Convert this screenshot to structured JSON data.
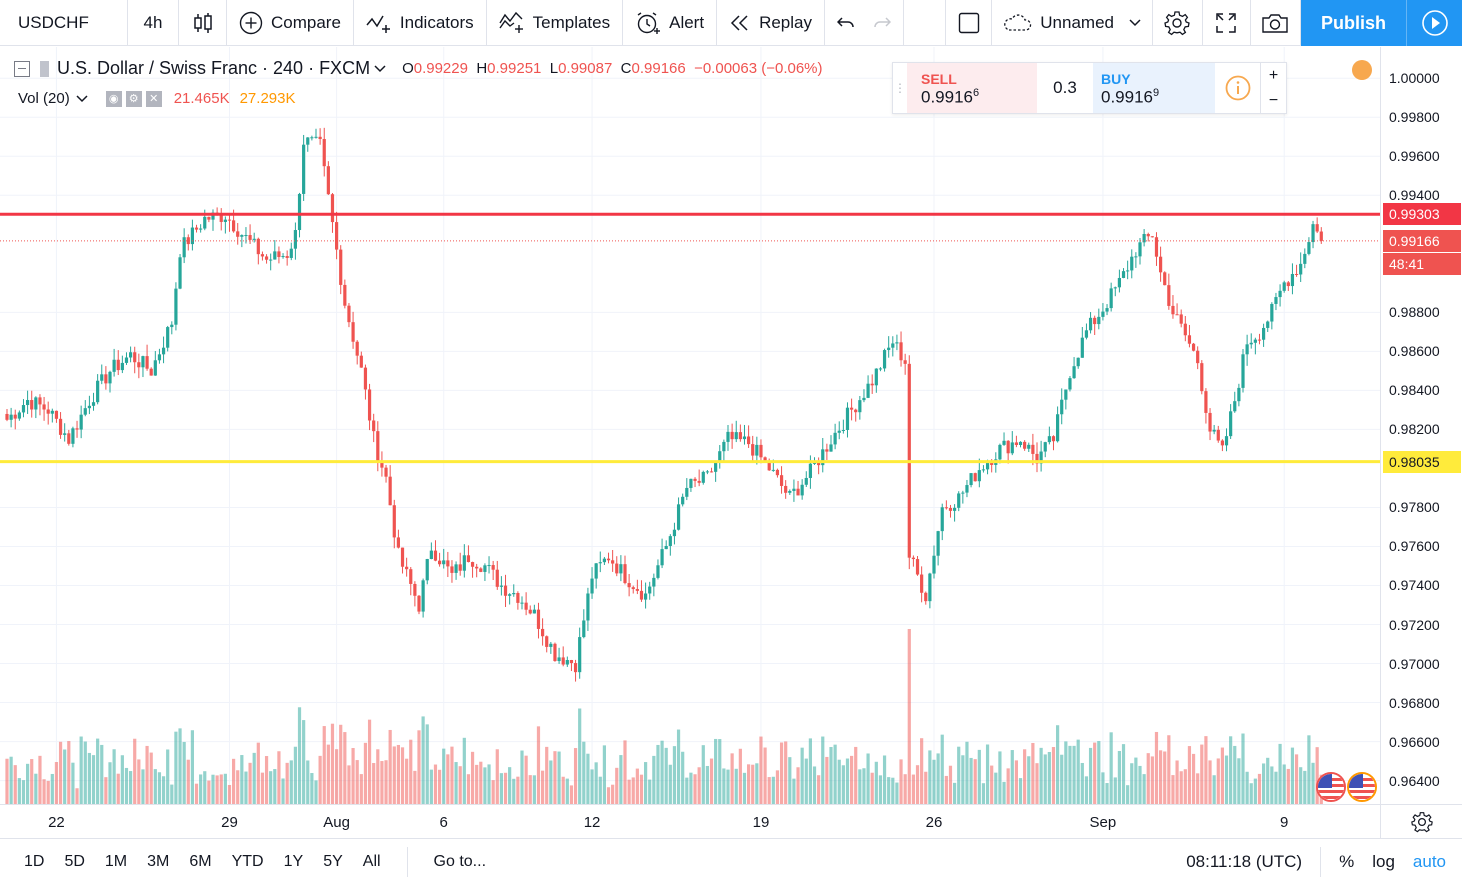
{
  "toolbar": {
    "symbol": "USDCHF",
    "interval": "4h",
    "compare": "Compare",
    "indicators": "Indicators",
    "templates": "Templates",
    "alert": "Alert",
    "replay": "Replay",
    "layout_name": "Unnamed",
    "publish": "Publish"
  },
  "legend": {
    "title": "U.S. Dollar / Swiss Franc · 240 · FXCM",
    "o_label": "O",
    "o": "0.99229",
    "h_label": "H",
    "h": "0.99251",
    "l_label": "L",
    "l": "0.99087",
    "c_label": "C",
    "c": "0.99166",
    "change": "−0.00063 (−0.06%)",
    "vol_label": "Vol (20)",
    "vol_a": "21.465K",
    "vol_b": "27.293K"
  },
  "trade": {
    "sell_label": "SELL",
    "sell_price": "0.9916",
    "sell_sup": "6",
    "spread": "0.3",
    "buy_label": "BUY",
    "buy_price": "0.9916",
    "buy_sup": "9",
    "plus": "+",
    "minus": "−"
  },
  "price_axis": {
    "ticks": [
      "1.00000",
      "0.99800",
      "0.99600",
      "0.99400",
      "0.98800",
      "0.98600",
      "0.98400",
      "0.98200",
      "0.97800",
      "0.97600",
      "0.97400",
      "0.97200",
      "0.97000",
      "0.96800",
      "0.96600",
      "0.96400"
    ],
    "resistance": "0.99303",
    "last": "0.99166",
    "countdown": "48:41",
    "support": "0.98035"
  },
  "time_axis": [
    "22",
    "29",
    "Aug",
    "6",
    "12",
    "19",
    "26",
    "Sep",
    "9"
  ],
  "bottom": {
    "ranges": [
      "1D",
      "5D",
      "1M",
      "3M",
      "6M",
      "YTD",
      "1Y",
      "5Y",
      "All"
    ],
    "goto": "Go to...",
    "clock": "08:11:18 (UTC)",
    "pct": "%",
    "log": "log",
    "auto": "auto"
  },
  "colors": {
    "up": "#26a69a",
    "down": "#ef5350",
    "resistance": "#f23645",
    "support": "#ffeb3b",
    "accent": "#2196f3"
  },
  "chart_data": {
    "type": "candlestick",
    "symbol": "USDCHF",
    "interval": "240",
    "ylim": [
      0.9628,
      1.0016
    ],
    "horizontal_lines": [
      0.99303,
      0.98035
    ],
    "last_price": 0.99166,
    "x_labels": [
      "22",
      "29",
      "Aug",
      "6",
      "12",
      "19",
      "26",
      "Sep",
      "9"
    ],
    "anchors": [
      [
        0,
        0.9825
      ],
      [
        5,
        0.9835
      ],
      [
        10,
        0.983
      ],
      [
        15,
        0.9815
      ],
      [
        20,
        0.9835
      ],
      [
        25,
        0.985
      ],
      [
        30,
        0.9858
      ],
      [
        35,
        0.985
      ],
      [
        40,
        0.9875
      ],
      [
        42,
        0.9912
      ],
      [
        48,
        0.9928
      ],
      [
        53,
        0.993
      ],
      [
        58,
        0.9918
      ],
      [
        63,
        0.9907
      ],
      [
        68,
        0.991
      ],
      [
        70,
        0.992
      ],
      [
        72,
        0.9968
      ],
      [
        76,
        0.9965
      ],
      [
        79,
        0.9925
      ],
      [
        82,
        0.9885
      ],
      [
        86,
        0.985
      ],
      [
        89,
        0.9815
      ],
      [
        92,
        0.9795
      ],
      [
        95,
        0.9755
      ],
      [
        100,
        0.973
      ],
      [
        103,
        0.976
      ],
      [
        108,
        0.9745
      ],
      [
        112,
        0.9755
      ],
      [
        116,
        0.975
      ],
      [
        120,
        0.974
      ],
      [
        124,
        0.9735
      ],
      [
        128,
        0.9725
      ],
      [
        133,
        0.9705
      ],
      [
        138,
        0.97
      ],
      [
        142,
        0.9745
      ],
      [
        146,
        0.9755
      ],
      [
        150,
        0.9745
      ],
      [
        155,
        0.9735
      ],
      [
        160,
        0.976
      ],
      [
        165,
        0.979
      ],
      [
        170,
        0.9795
      ],
      [
        175,
        0.9815
      ],
      [
        180,
        0.9813
      ],
      [
        185,
        0.98
      ],
      [
        190,
        0.9785
      ],
      [
        195,
        0.9798
      ],
      [
        200,
        0.9815
      ],
      [
        205,
        0.983
      ],
      [
        210,
        0.9845
      ],
      [
        215,
        0.9865
      ],
      [
        218,
        0.9855
      ],
      [
        219,
        0.9755
      ],
      [
        223,
        0.9735
      ],
      [
        227,
        0.978
      ],
      [
        231,
        0.9785
      ],
      [
        236,
        0.98
      ],
      [
        241,
        0.981
      ],
      [
        246,
        0.9815
      ],
      [
        250,
        0.9805
      ],
      [
        254,
        0.9815
      ],
      [
        258,
        0.985
      ],
      [
        262,
        0.987
      ],
      [
        266,
        0.9882
      ],
      [
        270,
        0.9895
      ],
      [
        274,
        0.9912
      ],
      [
        278,
        0.992
      ],
      [
        280,
        0.99
      ],
      [
        283,
        0.988
      ],
      [
        286,
        0.9868
      ],
      [
        289,
        0.9855
      ],
      [
        292,
        0.982
      ],
      [
        295,
        0.9808
      ],
      [
        298,
        0.9835
      ],
      [
        301,
        0.9865
      ],
      [
        304,
        0.987
      ],
      [
        307,
        0.988
      ],
      [
        310,
        0.9895
      ],
      [
        314,
        0.9905
      ],
      [
        317,
        0.9925
      ],
      [
        319,
        0.99166
      ]
    ]
  }
}
